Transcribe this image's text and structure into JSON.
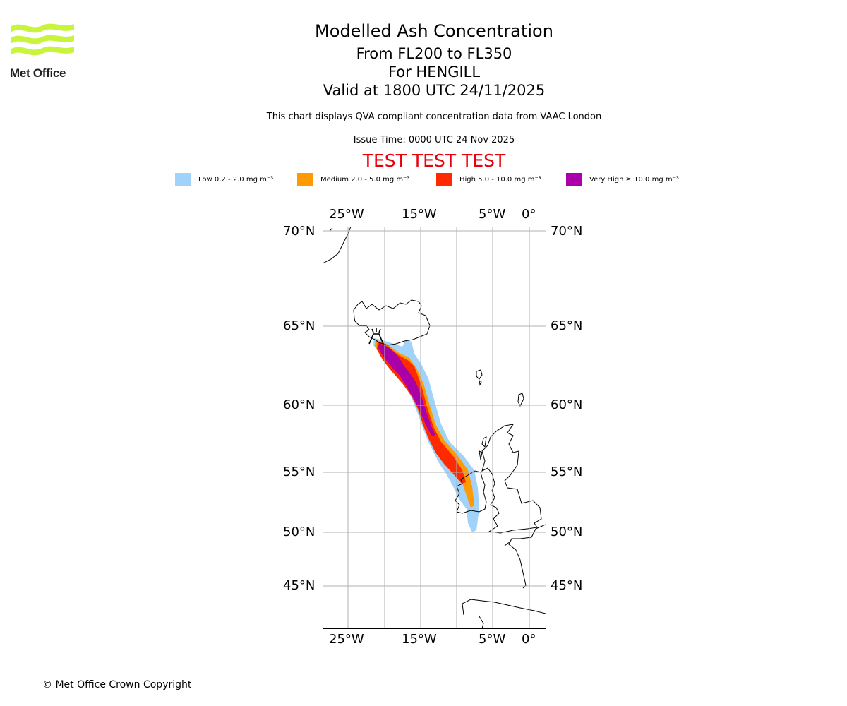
{
  "logo": {
    "text": "Met Office"
  },
  "titles": {
    "main": "Modelled Ash Concentration",
    "levels": "From FL200 to FL350",
    "volcano": "For HENGILL",
    "valid": "Valid at 1800 UTC 24/11/2025"
  },
  "disclaimer": "This chart displays QVA compliant concentration data from VAAC London",
  "issue_time": "Issue Time: 0000 UTC 24 Nov 2025",
  "test_banner": "TEST TEST TEST",
  "legend": [
    {
      "label": "Low 0.2 - 2.0 mg m⁻³",
      "color": "#a0d2fa"
    },
    {
      "label": "Medium 2.0 - 5.0 mg m⁻³",
      "color": "#ff9a05"
    },
    {
      "label": "High 5.0 - 10.0 mg m⁻³",
      "color": "#ff2a00"
    },
    {
      "label": "Very High ≥ 10.0 mg m⁻³",
      "color": "#aa00aa"
    }
  ],
  "axes": {
    "lon_labels": [
      "25°W",
      "15°W",
      "5°W",
      "0°"
    ],
    "lat_labels": [
      "70°N",
      "65°N",
      "60°N",
      "55°N",
      "50°N",
      "45°N"
    ]
  },
  "copyright": "© Met Office Crown Copyright"
}
